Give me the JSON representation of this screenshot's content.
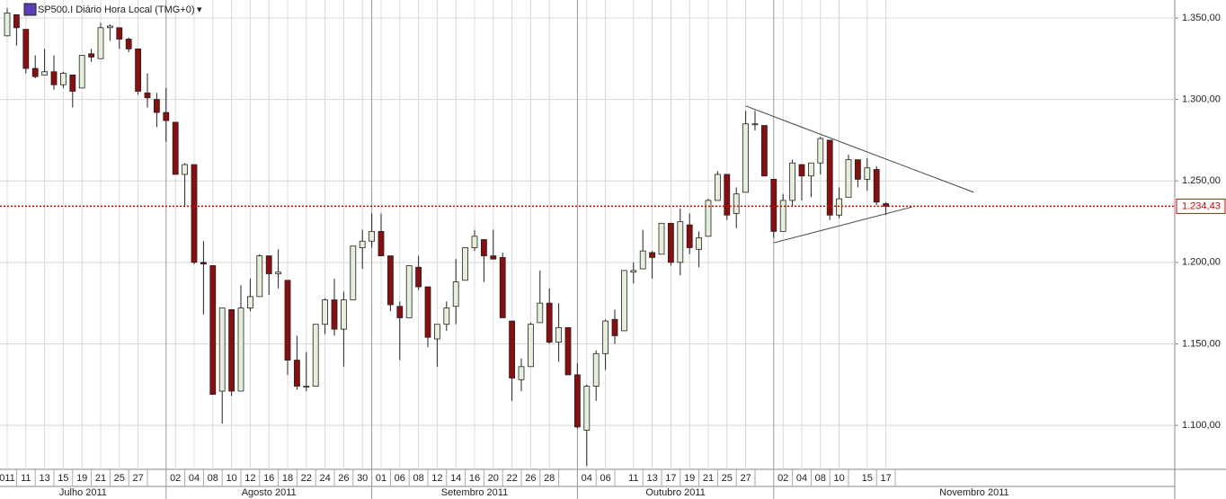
{
  "chart_data": {
    "type": "candlestick",
    "title": "SP500.I Diário Hora Local (TMG+0)",
    "title_marker": "▾",
    "categories": [
      "011",
      null,
      "11",
      null,
      "13",
      null,
      "15",
      null,
      "19",
      null,
      "21",
      null,
      "25",
      null,
      "27",
      null,
      null,
      null,
      "02",
      null,
      "04",
      null,
      "08",
      null,
      "10",
      null,
      "12",
      null,
      "16",
      null,
      "18",
      null,
      "22",
      null,
      "24",
      null,
      "26",
      null,
      "30",
      null,
      "01",
      null,
      "06",
      null,
      "08",
      null,
      "12",
      null,
      "14",
      null,
      "16",
      null,
      "20",
      null,
      "22",
      null,
      "26",
      null,
      "28",
      null,
      null,
      null,
      "04",
      null,
      "06",
      null,
      null,
      "11",
      null,
      "13",
      null,
      "17",
      null,
      "19",
      null,
      "21",
      null,
      "25",
      null,
      "27",
      null,
      null,
      null,
      "02",
      null,
      "04",
      null,
      "08",
      null,
      "10",
      null,
      null,
      "15",
      null,
      "17"
    ],
    "months": [
      "Julho 2011",
      "Agosto 2011",
      "Setembro 2011",
      "Outubro 2011",
      "Novembro 2011"
    ],
    "ohlc": [
      [
        1339,
        1356,
        1339,
        1353
      ],
      [
        1352,
        1352,
        1333,
        1344
      ],
      [
        1343,
        1343,
        1316,
        1319
      ],
      [
        1319,
        1327,
        1313,
        1314
      ],
      [
        1315,
        1331,
        1315,
        1317
      ],
      [
        1317,
        1327,
        1306,
        1309
      ],
      [
        1309,
        1317,
        1307,
        1316
      ],
      [
        1315,
        1315,
        1295,
        1305
      ],
      [
        1307,
        1327,
        1307,
        1327
      ],
      [
        1328,
        1331,
        1323,
        1326
      ],
      [
        1325,
        1347,
        1325,
        1344
      ],
      [
        1344,
        1346,
        1336,
        1345
      ],
      [
        1344,
        1344,
        1331,
        1337
      ],
      [
        1337,
        1338,
        1329,
        1331
      ],
      [
        1331,
        1331,
        1303,
        1305
      ],
      [
        1304,
        1316,
        1295,
        1301
      ],
      [
        1300,
        1304,
        1283,
        1292
      ],
      [
        1292,
        1307,
        1274,
        1287
      ],
      [
        1286,
        1286,
        1254,
        1254
      ],
      [
        1254,
        1261,
        1234,
        1260
      ],
      [
        1260,
        1260,
        1199,
        1200
      ],
      [
        1200,
        1213,
        1168,
        1199
      ],
      [
        1198,
        1198,
        1119,
        1119
      ],
      [
        1121,
        1172,
        1101,
        1172
      ],
      [
        1171,
        1171,
        1118,
        1121
      ],
      [
        1121,
        1186,
        1121,
        1172
      ],
      [
        1172,
        1190,
        1170,
        1179
      ],
      [
        1179,
        1205,
        1179,
        1204
      ],
      [
        1204,
        1204,
        1180,
        1193
      ],
      [
        1193,
        1208,
        1184,
        1194
      ],
      [
        1189,
        1189,
        1131,
        1140
      ],
      [
        1140,
        1155,
        1122,
        1124
      ],
      [
        1124,
        1145,
        1121,
        1124
      ],
      [
        1124,
        1162,
        1124,
        1162
      ],
      [
        1162,
        1178,
        1156,
        1177
      ],
      [
        1177,
        1190,
        1155,
        1159
      ],
      [
        1159,
        1182,
        1136,
        1177
      ],
      [
        1177,
        1210,
        1177,
        1210
      ],
      [
        1209,
        1220,
        1196,
        1213
      ],
      [
        1213,
        1230,
        1209,
        1219
      ],
      [
        1219,
        1230,
        1204,
        1204
      ],
      [
        1204,
        1204,
        1170,
        1174
      ],
      [
        1173,
        1176,
        1140,
        1166
      ],
      [
        1166,
        1198,
        1166,
        1198
      ],
      [
        1197,
        1204,
        1183,
        1185
      ],
      [
        1185,
        1185,
        1148,
        1154
      ],
      [
        1153,
        1162,
        1136,
        1162
      ],
      [
        1162,
        1176,
        1158,
        1172
      ],
      [
        1173,
        1202,
        1162,
        1188
      ],
      [
        1189,
        1209,
        1189,
        1209
      ],
      [
        1209,
        1220,
        1207,
        1216
      ],
      [
        1214,
        1214,
        1188,
        1204
      ],
      [
        1204,
        1220,
        1202,
        1202
      ],
      [
        1203,
        1206,
        1166,
        1166
      ],
      [
        1164,
        1164,
        1115,
        1129
      ],
      [
        1128,
        1141,
        1121,
        1136
      ],
      [
        1136,
        1163,
        1136,
        1162
      ],
      [
        1163,
        1195,
        1163,
        1175
      ],
      [
        1175,
        1184,
        1150,
        1151
      ],
      [
        1151,
        1175,
        1139,
        1160
      ],
      [
        1160,
        1160,
        1131,
        1131
      ],
      [
        1131,
        1138,
        1098,
        1099
      ],
      [
        1097,
        1125,
        1075,
        1124
      ],
      [
        1124,
        1146,
        1115,
        1144
      ],
      [
        1144,
        1165,
        1134,
        1164
      ],
      [
        1165,
        1171,
        1150,
        1155
      ],
      [
        1158,
        1195,
        1158,
        1195
      ],
      [
        1194,
        1200,
        1187,
        1195
      ],
      [
        1196,
        1220,
        1196,
        1207
      ],
      [
        1206,
        1207,
        1190,
        1203
      ],
      [
        1205,
        1224,
        1205,
        1224
      ],
      [
        1224,
        1224,
        1198,
        1200
      ],
      [
        1200,
        1233,
        1192,
        1225
      ],
      [
        1223,
        1230,
        1205,
        1209
      ],
      [
        1208,
        1219,
        1197,
        1215
      ],
      [
        1216,
        1239,
        1216,
        1238
      ],
      [
        1238,
        1256,
        1238,
        1254
      ],
      [
        1254,
        1254,
        1226,
        1229
      ],
      [
        1230,
        1246,
        1221,
        1242
      ],
      [
        1243,
        1293,
        1243,
        1285
      ],
      [
        1285,
        1293,
        1281,
        1285
      ],
      [
        1284,
        1284,
        1253,
        1253
      ],
      [
        1251,
        1251,
        1215,
        1219
      ],
      [
        1219,
        1242,
        1219,
        1238
      ],
      [
        1238,
        1263,
        1234,
        1261
      ],
      [
        1260,
        1260,
        1238,
        1253
      ],
      [
        1253,
        1261,
        1240,
        1261
      ],
      [
        1261,
        1277,
        1254,
        1276
      ],
      [
        1275,
        1275,
        1226,
        1229
      ],
      [
        1229,
        1246,
        1227,
        1239
      ],
      [
        1240,
        1266,
        1240,
        1263
      ],
      [
        1263,
        1263,
        1246,
        1251
      ],
      [
        1251,
        1264,
        1244,
        1258
      ],
      [
        1257,
        1259,
        1235,
        1237
      ],
      [
        1236,
        1237,
        1229,
        1234.43
      ]
    ],
    "up_color": "#e4f0da",
    "down_color": "#8b0d0d",
    "ylim": [
      1073,
      1361
    ],
    "yticks": [
      {
        "value": 1100,
        "label": "1.100,00"
      },
      {
        "value": 1150,
        "label": "1.150,00"
      },
      {
        "value": 1200,
        "label": "1.200,00"
      },
      {
        "value": 1250,
        "label": "1.250,00"
      },
      {
        "value": 1300,
        "label": "1.300,00"
      },
      {
        "value": 1350,
        "label": "1.350,00"
      }
    ],
    "last_price": {
      "value": 1234.43,
      "label": "1.234,43"
    },
    "trendlines": [
      {
        "x": [
          79,
          103.4
        ],
        "y": [
          1296,
          1243
        ]
      },
      {
        "x": [
          82,
          96.8
        ],
        "y": [
          1212,
          1234
        ]
      }
    ],
    "grid": true
  }
}
